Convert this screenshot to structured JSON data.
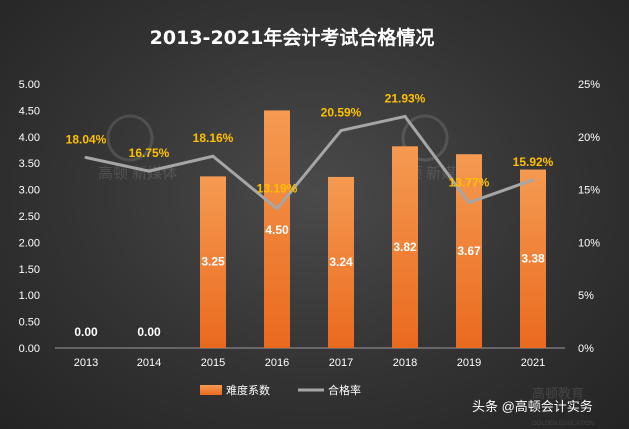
{
  "chart_data": {
    "type": "bar",
    "title": "2013-2021年会计考试合格情况",
    "categories": [
      "2013",
      "2014",
      "2015",
      "2016",
      "2017",
      "2018",
      "2019",
      "2021"
    ],
    "series": [
      {
        "name": "难度系数",
        "type": "bar",
        "axis": "left",
        "values": [
          0.0,
          0.0,
          3.25,
          4.5,
          3.24,
          3.82,
          3.67,
          3.38
        ],
        "labels": [
          "0.00",
          "0.00",
          "3.25",
          "4.50",
          "3.24",
          "3.82",
          "3.67",
          "3.38"
        ],
        "color": "#f07a32"
      },
      {
        "name": "合格率",
        "type": "line",
        "axis": "right",
        "values": [
          18.04,
          16.75,
          18.16,
          13.19,
          20.59,
          21.93,
          13.77,
          15.92
        ],
        "labels": [
          "18.04%",
          "16.75%",
          "18.16%",
          "13.19%",
          "20.59%",
          "21.93%",
          "13.77%",
          "15.92%"
        ],
        "color": "#a6a6a6"
      }
    ],
    "y_left": {
      "min": 0,
      "max": 5,
      "ticks": [
        "0.00",
        "0.50",
        "1.00",
        "1.50",
        "2.00",
        "2.50",
        "3.00",
        "3.50",
        "4.00",
        "4.50",
        "5.00"
      ]
    },
    "y_right": {
      "min": 0,
      "max": 25,
      "ticks": [
        "0%",
        "5%",
        "10%",
        "15%",
        "20%",
        "25%"
      ]
    },
    "grid": false,
    "legend_position": "bottom"
  },
  "watermark": {
    "brand": "高顿",
    "line1": "高顿 新媒体",
    "footer_logo": "高顿教育",
    "footer_logo_en": "GOLDEN EDUCATION"
  },
  "footer": {
    "credit": "头条 @高顿会计实务"
  },
  "colors": {
    "bar_top": "#f59a52",
    "bar_bottom": "#ea6a1e",
    "line": "#a6a6a6",
    "pct_label": "#ffc000",
    "value_label": "#ffffff"
  }
}
